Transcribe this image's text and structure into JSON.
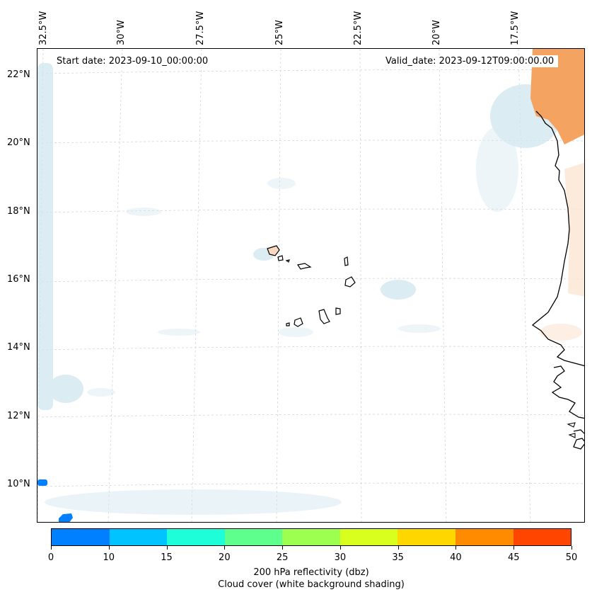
{
  "map": {
    "start_date": "Start date: 2023-09-10_00:00:00",
    "valid_date": "Valid_date: 2023-09-12T09:00:00.00",
    "lon_labels": [
      "32.5°W",
      "30°W",
      "27.5°W",
      "25°W",
      "22.5°W",
      "20°W",
      "17.5°W"
    ],
    "lat_labels": [
      "22°N",
      "20°N",
      "18°N",
      "16°N",
      "14°N",
      "12°N",
      "10°N"
    ],
    "region": "Cape Verde Islands and West African coast",
    "colors": {
      "cloud": "#cfe6ee",
      "high_reflectivity": "#f4a460",
      "low_reflectivity": "#0080ff",
      "coastline": "#000000",
      "gridline": "#c8c8c8"
    }
  },
  "colorbar": {
    "label_line1": "200 hPa reflectivity (dbz)",
    "label_line2": "Cloud cover (white background shading)",
    "ticks": [
      "0",
      "10",
      "15",
      "20",
      "25",
      "30",
      "35",
      "40",
      "45",
      "50"
    ],
    "colors": [
      "#0080ff",
      "#00c3ff",
      "#1effd9",
      "#5eff8d",
      "#9dff50",
      "#d9ff1e",
      "#ffd700",
      "#ff8c00",
      "#ff4500"
    ]
  }
}
